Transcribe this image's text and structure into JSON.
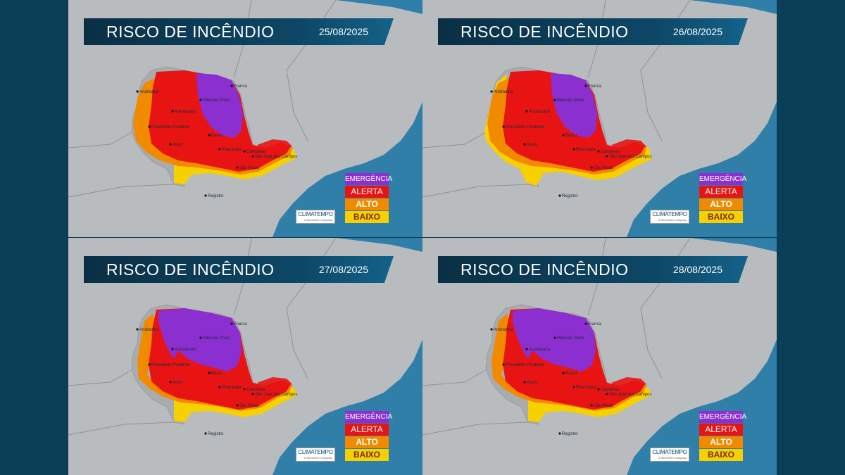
{
  "title": "RISCO DE INCÊNDIO",
  "legend": {
    "emergencia": "EMERGÊNCIA",
    "alerta": "ALERTA",
    "alto": "ALTO",
    "baixo": "BAIXO"
  },
  "logo": {
    "name": "CLIMATEMPO",
    "sub": "A StormGeo Company"
  },
  "colors": {
    "emergencia": "#8c2fd1",
    "alerta": "#e81414",
    "alto": "#f28a00",
    "baixo": "#f7d000",
    "ocean": "#2f7fa8",
    "land": "#b9bcbf"
  },
  "cities": [
    "Andradina",
    "Franca",
    "Ribeirão Preto",
    "Araraquara",
    "Presidente Prudente",
    "Assis",
    "Bauru",
    "Piracicaba",
    "Campinas",
    "São José dos Campos",
    "São Paulo",
    "Registro"
  ],
  "panels": [
    {
      "date": "25/08/2025",
      "risk": {
        "emergencia": "medium",
        "alerta": "large",
        "alto": "medium",
        "baixo": "small"
      }
    },
    {
      "date": "26/08/2025",
      "risk": {
        "emergencia": "medium",
        "alerta": "large",
        "alto": "medium",
        "baixo": "large"
      }
    },
    {
      "date": "27/08/2025",
      "risk": {
        "emergencia": "large",
        "alerta": "large",
        "alto": "small",
        "baixo": "small"
      }
    },
    {
      "date": "28/08/2025",
      "risk": {
        "emergencia": "large",
        "alerta": "large",
        "alto": "small",
        "baixo": "small"
      }
    }
  ]
}
